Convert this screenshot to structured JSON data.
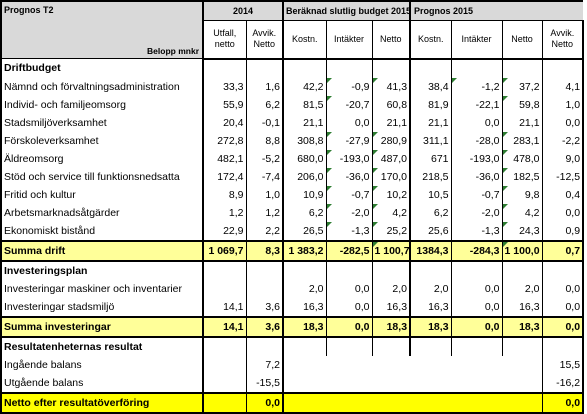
{
  "title": "Prognos T2",
  "unit_label": "Belopp mnkr",
  "group_headers": {
    "y2014": "2014",
    "budget2015": "Beräknad slutlig budget 2015",
    "prognos2015": "Prognos 2015"
  },
  "col_headers": {
    "utfall": "Utfall, netto",
    "avvik_2014": "Avvik. Netto",
    "kostn_b": "Kostn.",
    "intakter_b": "Intäkter",
    "netto_b": "Netto",
    "kostn_p": "Kostn.",
    "intakter_p": "Intäkter",
    "netto_p": "Netto",
    "avvik_p": "Avvik. Netto"
  },
  "sections": {
    "driftbudget": "Driftbudget",
    "investeringsplan": "Investeringsplan",
    "resultatenheter": "Resultatenheternas resultat"
  },
  "drift_rows": [
    {
      "label": "Nämnd och förvaltningsadministration",
      "c": [
        "33,3",
        "1,6",
        "42,2",
        "-0,9",
        "41,3",
        "38,4",
        "-1,2",
        "37,2",
        "4,1"
      ]
    },
    {
      "label": "Individ- och familjeomsorg",
      "c": [
        "55,9",
        "6,2",
        "81,5",
        "-20,7",
        "60,8",
        "81,9",
        "-22,1",
        "59,8",
        "1,0"
      ]
    },
    {
      "label": "Stadsmiljöverksamhet",
      "c": [
        "20,4",
        "-0,1",
        "21,1",
        "0,0",
        "21,1",
        "21,1",
        "0,0",
        "21,1",
        "0,0"
      ]
    },
    {
      "label": "Förskoleverksamhet",
      "c": [
        "272,8",
        "8,8",
        "308,8",
        "-27,9",
        "280,9",
        "311,1",
        "-28,0",
        "283,1",
        "-2,2"
      ]
    },
    {
      "label": "Äldreomsorg",
      "c": [
        "482,1",
        "-5,2",
        "680,0",
        "-193,0",
        "487,0",
        "671",
        "-193,0",
        "478,0",
        "9,0"
      ]
    },
    {
      "label": "Stöd och service till funktionsnedsatta",
      "c": [
        "172,4",
        "-7,4",
        "206,0",
        "-36,0",
        "170,0",
        "218,5",
        "-36,0",
        "182,5",
        "-12,5"
      ]
    },
    {
      "label": "Fritid och kultur",
      "c": [
        "8,9",
        "1,0",
        "10,9",
        "-0,7",
        "10,2",
        "10,5",
        "-0,7",
        "9,8",
        "0,4"
      ]
    },
    {
      "label": "Arbetsmarknadsåtgärder",
      "c": [
        "1,2",
        "1,2",
        "6,2",
        "-2,0",
        "4,2",
        "6,2",
        "-2,0",
        "4,2",
        "0,0"
      ]
    },
    {
      "label": "Ekonomiskt bistånd",
      "c": [
        "22,9",
        "2,2",
        "26,5",
        "-1,3",
        "25,2",
        "25,6",
        "-1,3",
        "24,3",
        "0,9"
      ]
    }
  ],
  "summa_drift": {
    "label": "Summa drift",
    "c": [
      "1 069,7",
      "8,3",
      "1 383,2",
      "-282,5",
      "1 100,7",
      "1384,3",
      "-284,3",
      "1 100,0",
      "0,7"
    ]
  },
  "invest_rows": [
    {
      "label": "Investeringar maskiner och inventarier",
      "c": [
        "",
        "",
        "2,0",
        "0,0",
        "2,0",
        "2,0",
        "0,0",
        "2,0",
        "0,0"
      ]
    },
    {
      "label": "Investeringar stadsmiljö",
      "c": [
        "14,1",
        "3,6",
        "16,3",
        "0,0",
        "16,3",
        "16,3",
        "0,0",
        "16,3",
        "0,0"
      ]
    }
  ],
  "summa_invest": {
    "label": "Summa investeringar",
    "c": [
      "14,1",
      "3,6",
      "18,3",
      "0,0",
      "18,3",
      "18,3",
      "0,0",
      "18,3",
      "0,0"
    ]
  },
  "balans_rows": [
    {
      "label": "Ingående balans",
      "avvik_2014": "7,2",
      "avvik_p": "15,5"
    },
    {
      "label": "Utgående balans",
      "avvik_2014": "-15,5",
      "avvik_p": "-16,2"
    }
  ],
  "netto_row": {
    "label": "Netto efter resultatöverföring",
    "avvik_2014": "0,0",
    "avvik_p": "0,0"
  },
  "colors": {
    "header_grey": "#d9d9d9",
    "summa_yellow": "#ffff99",
    "netto_yellow": "#ffff00",
    "comment_marker": "#2e7d32"
  }
}
